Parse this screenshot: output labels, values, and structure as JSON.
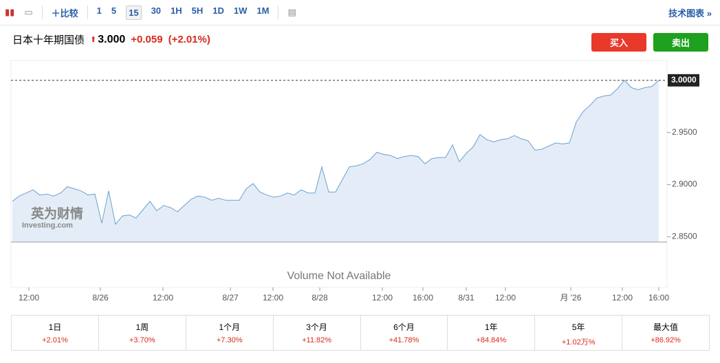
{
  "toolbar": {
    "compare": "比较",
    "intervals": [
      "1",
      "5",
      "15",
      "30",
      "1H",
      "5H",
      "1D",
      "1W",
      "1M"
    ],
    "active_interval": "15",
    "tech_chart": "技术图表 »"
  },
  "header": {
    "title": "日本十年期国债",
    "price": "3.000",
    "change": "+0.059",
    "change_pct": "(+2.01%)",
    "buy": "买入",
    "sell": "卖出"
  },
  "watermark": {
    "brand": "英为财情",
    "site": "Investing.com"
  },
  "chart_data": {
    "type": "area",
    "color": "#6a9fd0",
    "fill": "#e4edf7",
    "values": [
      2.884,
      2.889,
      2.892,
      2.895,
      2.89,
      2.891,
      2.889,
      2.892,
      2.898,
      2.896,
      2.894,
      2.89,
      2.891,
      2.863,
      2.894,
      2.862,
      2.87,
      2.871,
      2.868,
      2.876,
      2.884,
      2.875,
      2.88,
      2.878,
      2.874,
      2.88,
      2.886,
      2.889,
      2.888,
      2.885,
      2.887,
      2.885,
      2.885,
      2.885,
      2.896,
      2.901,
      2.893,
      2.89,
      2.888,
      2.889,
      2.892,
      2.89,
      2.895,
      2.892,
      2.892,
      2.917,
      2.893,
      2.893,
      2.905,
      2.917,
      2.918,
      2.92,
      2.924,
      2.931,
      2.929,
      2.928,
      2.925,
      2.927,
      2.928,
      2.927,
      2.92,
      2.925,
      2.926,
      2.926,
      2.938,
      2.922,
      2.93,
      2.936,
      2.948,
      2.943,
      2.941,
      2.943,
      2.944,
      2.947,
      2.944,
      2.942,
      2.933,
      2.934,
      2.937,
      2.94,
      2.939,
      2.94,
      2.96,
      2.97,
      2.976,
      2.983,
      2.985,
      2.986,
      2.992,
      3.0,
      2.993,
      2.991,
      2.993,
      2.994,
      3.0
    ],
    "xlim": [
      0,
      94
    ],
    "xticks": [
      {
        "value": 2.4,
        "label": "12:00"
      },
      {
        "value": 12.8,
        "label": "8/26"
      },
      {
        "value": 21.9,
        "label": "12:00"
      },
      {
        "value": 31.7,
        "label": "8/27"
      },
      {
        "value": 37.9,
        "label": "12:00"
      },
      {
        "value": 44.7,
        "label": "8/28"
      },
      {
        "value": 53.8,
        "label": "12:00"
      },
      {
        "value": 59.7,
        "label": "16:00"
      },
      {
        "value": 66,
        "label": "8/31"
      },
      {
        "value": 71.7,
        "label": "12:00"
      },
      {
        "value": 81.2,
        "label": "月 '26"
      },
      {
        "value": 88.7,
        "label": "12:00"
      },
      {
        "value": 94,
        "label": "16:00"
      }
    ],
    "ylim": [
      2.845,
      3.019
    ],
    "yticks": [
      {
        "value": 2.85,
        "label": "2.8500"
      },
      {
        "value": 2.9,
        "label": "2.9000"
      },
      {
        "value": 2.95,
        "label": "2.9500"
      }
    ],
    "last_price": {
      "value": 3.0,
      "label": "3.0000"
    },
    "volume_note": "Volume Not Available"
  },
  "performance": {
    "periods": [
      "1日",
      "1周",
      "1个月",
      "3个月",
      "6个月",
      "1年",
      "5年",
      "最大值"
    ],
    "changes": [
      "+2.01%",
      "+3.70%",
      "+7.30%",
      "+11.82%",
      "+41.78%",
      "+84.84%",
      "+1.02万%",
      "+86.92%"
    ]
  }
}
